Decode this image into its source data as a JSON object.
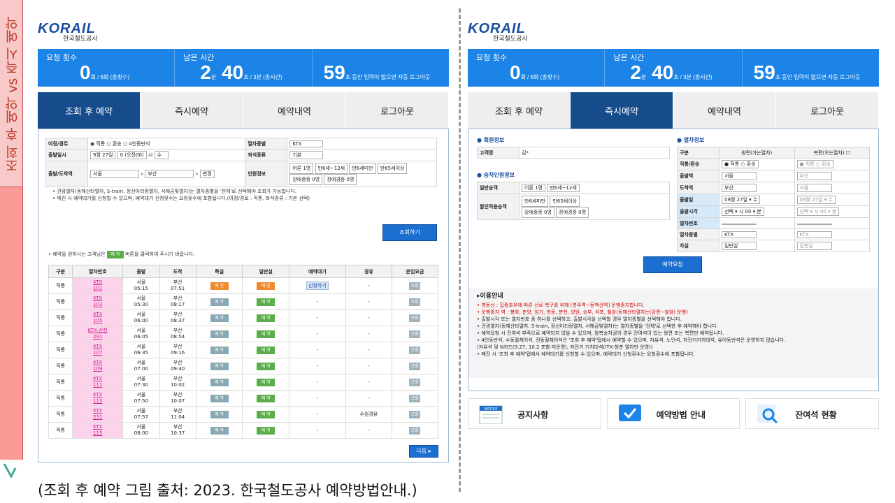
{
  "sidebar": {
    "title": "조회 후 예약 vs 즉시 예약"
  },
  "common": {
    "logo_brand": "KORAIL",
    "logo_sub": "한국철도공사",
    "stats": {
      "req_label": "요청 횟수",
      "req_value": "0",
      "req_suffix": "회 / 6회 (총횟수)",
      "time_label": "남은 시간",
      "time_min": "2",
      "time_min_unit": "분",
      "time_sec": "40",
      "time_suffix": "초 / 3분 (총시간)",
      "logout_value": "59",
      "logout_suffix": "초 동안 입력이 없으면 자동 로그아웃"
    },
    "tabs": [
      "조회 후 예약",
      "즉시예약",
      "예약내역",
      "로그아웃"
    ]
  },
  "left": {
    "form": {
      "route_label": "여정/경로",
      "route_opts": [
        "직통",
        "환승",
        "4인동반석"
      ],
      "type_label": "열차종별",
      "type_value": "KTX",
      "date_label": "출발일시",
      "month_day": "9월 27일",
      "time": "0 (오전00)",
      "hour_unit": "시",
      "weekday": "수",
      "seat_label": "좌석종류",
      "seat_value": "기본",
      "station_label": "출발/도착역",
      "dep": "서울",
      "arr": "부산",
      "swap": "변경",
      "pax_label": "인원정보",
      "pax": [
        "어른 1명",
        "만6세~12세",
        "만6세미만",
        "만65세이상",
        "장애중증 0명",
        "장애경증 0명"
      ]
    },
    "notes": [
      "• 관광열차(동해산타열차, S-train, 정선아리랑열차, 서해금빛열차)는 열차종별을 '전체'로 선택해야 조회가 가능합니다.",
      "• 매진 시 예약대기를 신청할 수 있으며, 예약대기 신청횟수는 요청횟수에 포함됩니다.(여정/경로 : 직통, 좌석종류 : 기본 선택)"
    ],
    "search_btn": "조회하기",
    "hint_pre": "• 예약을 원하시는 고객님은",
    "hint_badge": "예 약",
    "hint_post": "버튼을 클릭하여 주시기 바랍니다.",
    "headers": [
      "구분",
      "열차번호",
      "출발",
      "도착",
      "특실",
      "일반실",
      "예약대기",
      "경유",
      "운임요금"
    ],
    "rows": [
      {
        "k": "직통",
        "tr": "KTX\n101",
        "d": "서울\n05:15",
        "a": "부산\n07:51",
        "sp": "매 진",
        "gn": "매 진",
        "w": "신청하기",
        "v": "-",
        "f": "조회"
      },
      {
        "k": "직통",
        "tr": "KTX\n103",
        "d": "서울\n05:30",
        "a": "부산\n08:17",
        "sp": "예 약",
        "gn": "예 약",
        "w": "-",
        "v": "-",
        "f": "조회"
      },
      {
        "k": "직통",
        "tr": "KTX\n105",
        "d": "서울\n06:00",
        "a": "부산\n08:37",
        "sp": "예 약",
        "gn": "예 약",
        "w": "-",
        "v": "-",
        "f": "조회"
      },
      {
        "k": "직통",
        "tr": "KTX-산천\n291",
        "d": "서울\n06:05",
        "a": "부산\n08:54",
        "sp": "예 약",
        "gn": "예 약",
        "w": "-",
        "v": "-",
        "f": "조회"
      },
      {
        "k": "직통",
        "tr": "KTX\n107",
        "d": "서울\n06:35",
        "a": "부산\n09:16",
        "sp": "예 약",
        "gn": "예 약",
        "w": "-",
        "v": "-",
        "f": "조회"
      },
      {
        "k": "직통",
        "tr": "KTX\n109",
        "d": "서울\n07:00",
        "a": "부산\n09:40",
        "sp": "예 약",
        "gn": "예 약",
        "w": "-",
        "v": "-",
        "f": "조회"
      },
      {
        "k": "직통",
        "tr": "KTX\n111",
        "d": "서울\n07:30",
        "a": "부산\n10:02",
        "sp": "예 약",
        "gn": "예 약",
        "w": "-",
        "v": "-",
        "f": "조회"
      },
      {
        "k": "직통",
        "tr": "KTX\n113",
        "d": "서울\n07:50",
        "a": "부산\n10:07",
        "sp": "예 약",
        "gn": "예 약",
        "w": "-",
        "v": "-",
        "f": "조회"
      },
      {
        "k": "직통",
        "tr": "KTX\n231",
        "d": "서울\n07:57",
        "a": "부산\n11:04",
        "sp": "예 약",
        "gn": "예 약",
        "w": "-",
        "v": "수원경유",
        "f": "조회"
      },
      {
        "k": "직통",
        "tr": "KTX\n115",
        "d": "서울\n08:00",
        "a": "부산\n10:37",
        "sp": "예 약",
        "gn": "예 약",
        "w": "-",
        "v": "-",
        "f": "조회"
      }
    ],
    "next_btn": "다음 ▸"
  },
  "right": {
    "member_title": "회원정보",
    "member_label": "고객명",
    "member_value": "김*",
    "pax_title": "승차인원정보",
    "pax_rows": [
      {
        "label": "일반승객",
        "sels": [
          "어른 1명",
          "만6세~12세"
        ]
      },
      {
        "label": "할인적용승객",
        "sels": [
          "만6세미만",
          "만65세이상",
          "장애중증 0명",
          "장애경증 0명"
        ]
      }
    ],
    "train_title": "열차정보",
    "col_kind": "구분",
    "col_out": "왕편(가는열차)",
    "col_ret": "복편(오는열차)",
    "rows": [
      {
        "label": "직통/환승",
        "out": "● 직통 ○ 환승",
        "ret": "● 직통 ○ 환승"
      },
      {
        "label": "출발역",
        "out": "서울",
        "ret": "부산"
      },
      {
        "label": "도착역",
        "out": "부산",
        "ret": "서울"
      },
      {
        "label": "출발일",
        "out": "09월 27일 ▾  수",
        "ret": "09월 27일 ▾  수"
      },
      {
        "label": "출발시각",
        "out": "선택 ▾ 시  00 ▾ 분",
        "ret": "선택 ▾ 시  00 ▾ 분"
      },
      {
        "label": "열차번호",
        "out": "",
        "ret": ""
      },
      {
        "label": "열차종별",
        "out": "KTX",
        "ret": "KTX"
      },
      {
        "label": "차실",
        "out": "일반실",
        "ret": "일반실"
      }
    ],
    "reserve_btn": "예약요청",
    "info_title": "▸이용안내",
    "info_red": [
      "• 영동선 : 집중호우에 따른 선로 복구를 위해 [영주역~동백산역] 운행중지합니다.",
      "  • 운행중지 역 : 봉화, 춘양, 임기, 현동, 분천, 양원, 승부, 석포, 철암(동해산타열차는(강릉~철암) 운행)"
    ],
    "info_black": [
      "• 출발시각 또는 열차번호 중 하나를 선택하고, 출발시각을 선택할 경우 열차종별을 선택해야 합니다.",
      "• 관광열차(동해산타열차, S-train, 정선아리랑열차, 서해금빛열차)는 열차종별을 '전체'로 선택한 후 예약해야 합니다.",
      "• 예약요청 시 잔여석 부족으로 예약되지 않을 수 있으며, 왕복승차권의 경우 잔여석이 있는 왕편 또는 복편만 예약됩니다.",
      "• 4인동반석, 수동휠체어석, 전동휠체어석은 '조회 후 예약'탭에서 예약할 수 있으며, 자유석, 노인석, 자전거거치대석, 유아동반석은 운영하지 않습니다.",
      "  (자유석 및 N카드(9.27, 10.2 포함 미운영), 자전거 거치대석(ITX-청춘 열차만 운영))",
      "• 매진 시 '조회 후 예약'탭에서 예약대기를 신청할 수 있으며, 예약대기 신청횟수는 요청횟수에 포함됩니다."
    ],
    "cards": [
      {
        "label": "공지사항",
        "icon": "notice-icon"
      },
      {
        "label": "예약방법 안내",
        "icon": "check-icon"
      },
      {
        "label": "잔여석 현황",
        "icon": "magnifier-icon"
      }
    ],
    "notice_badge": "NOTICE"
  },
  "caption": "(조회 후 예약 그림 출처: 2023. 한국철도공사 예약방법안내.)"
}
